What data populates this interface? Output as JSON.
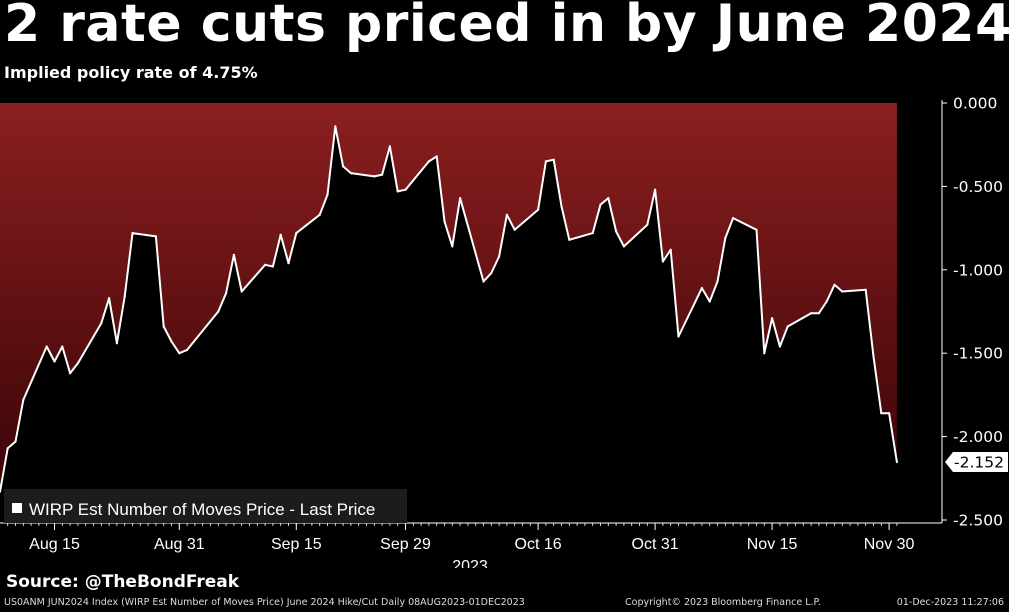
{
  "title": "2 rate cuts priced in by June 2024",
  "subtitle": "Implied policy rate of 4.75%",
  "source": "Source: @TheBondFreak",
  "footer": {
    "description": "US0ANM JUN2024 Index (WIRP Est Number of Moves Price) June 2024 Hike/Cut  Daily 08AUG2023-01DEC2023",
    "copyright": "Copyright© 2023 Bloomberg Finance L.P.",
    "timestamp": "01-Dec-2023 11:27:06"
  },
  "colors": {
    "background": "#000000",
    "area_top": "#8c1f20",
    "area_bottom": "#3a0406",
    "line": "#ffffff"
  },
  "chart_data": {
    "type": "line",
    "legend": "WIRP Est Number of Moves Price - Last Price",
    "legend_position": "bottom-left",
    "x_year_label": "2023",
    "x_ticks": [
      "Aug 15",
      "Aug 31",
      "Sep 15",
      "Sep 29",
      "Oct 16",
      "Oct 31",
      "Nov 15",
      "Nov 30"
    ],
    "x_tick_dates": [
      "2023-08-15",
      "2023-08-31",
      "2023-09-15",
      "2023-09-29",
      "2023-10-16",
      "2023-10-31",
      "2023-11-15",
      "2023-11-30"
    ],
    "y_ticks": [
      "0.000",
      "-0.500",
      "-1.000",
      "-1.500",
      "-2.000",
      "-2.500"
    ],
    "ylim": [
      -2.5,
      0
    ],
    "last_value_label": "-2.152",
    "grid": false,
    "series": [
      {
        "name": "WIRP Est Number of Moves Price - Last Price",
        "points": [
          [
            "2023-08-08",
            -2.33
          ],
          [
            "2023-08-09",
            -2.07
          ],
          [
            "2023-08-10",
            -2.03
          ],
          [
            "2023-08-11",
            -1.78
          ],
          [
            "2023-08-14",
            -1.46
          ],
          [
            "2023-08-15",
            -1.55
          ],
          [
            "2023-08-16",
            -1.46
          ],
          [
            "2023-08-17",
            -1.62
          ],
          [
            "2023-08-18",
            -1.56
          ],
          [
            "2023-08-21",
            -1.32
          ],
          [
            "2023-08-22",
            -1.17
          ],
          [
            "2023-08-23",
            -1.44
          ],
          [
            "2023-08-24",
            -1.16
          ],
          [
            "2023-08-25",
            -0.78
          ],
          [
            "2023-08-28",
            -0.8
          ],
          [
            "2023-08-29",
            -1.34
          ],
          [
            "2023-08-30",
            -1.43
          ],
          [
            "2023-08-31",
            -1.5
          ],
          [
            "2023-09-01",
            -1.48
          ],
          [
            "2023-09-05",
            -1.25
          ],
          [
            "2023-09-06",
            -1.14
          ],
          [
            "2023-09-07",
            -0.91
          ],
          [
            "2023-09-08",
            -1.13
          ],
          [
            "2023-09-11",
            -0.97
          ],
          [
            "2023-09-12",
            -0.98
          ],
          [
            "2023-09-13",
            -0.79
          ],
          [
            "2023-09-14",
            -0.96
          ],
          [
            "2023-09-15",
            -0.78
          ],
          [
            "2023-09-18",
            -0.67
          ],
          [
            "2023-09-19",
            -0.55
          ],
          [
            "2023-09-20",
            -0.14
          ],
          [
            "2023-09-21",
            -0.38
          ],
          [
            "2023-09-22",
            -0.42
          ],
          [
            "2023-09-25",
            -0.44
          ],
          [
            "2023-09-26",
            -0.43
          ],
          [
            "2023-09-27",
            -0.26
          ],
          [
            "2023-09-28",
            -0.53
          ],
          [
            "2023-09-29",
            -0.52
          ],
          [
            "2023-10-02",
            -0.35
          ],
          [
            "2023-10-03",
            -0.32
          ],
          [
            "2023-10-04",
            -0.71
          ],
          [
            "2023-10-05",
            -0.86
          ],
          [
            "2023-10-06",
            -0.57
          ],
          [
            "2023-10-09",
            -1.07
          ],
          [
            "2023-10-10",
            -1.02
          ],
          [
            "2023-10-11",
            -0.92
          ],
          [
            "2023-10-12",
            -0.67
          ],
          [
            "2023-10-13",
            -0.76
          ],
          [
            "2023-10-16",
            -0.64
          ],
          [
            "2023-10-17",
            -0.35
          ],
          [
            "2023-10-18",
            -0.34
          ],
          [
            "2023-10-19",
            -0.62
          ],
          [
            "2023-10-20",
            -0.82
          ],
          [
            "2023-10-23",
            -0.78
          ],
          [
            "2023-10-24",
            -0.61
          ],
          [
            "2023-10-25",
            -0.57
          ],
          [
            "2023-10-26",
            -0.77
          ],
          [
            "2023-10-27",
            -0.86
          ],
          [
            "2023-10-30",
            -0.73
          ],
          [
            "2023-10-31",
            -0.52
          ],
          [
            "2023-11-01",
            -0.95
          ],
          [
            "2023-11-02",
            -0.88
          ],
          [
            "2023-11-03",
            -1.4
          ],
          [
            "2023-11-06",
            -1.11
          ],
          [
            "2023-11-07",
            -1.19
          ],
          [
            "2023-11-08",
            -1.07
          ],
          [
            "2023-11-09",
            -0.81
          ],
          [
            "2023-11-10",
            -0.69
          ],
          [
            "2023-11-13",
            -0.76
          ],
          [
            "2023-11-14",
            -1.5
          ],
          [
            "2023-11-15",
            -1.29
          ],
          [
            "2023-11-16",
            -1.46
          ],
          [
            "2023-11-17",
            -1.34
          ],
          [
            "2023-11-20",
            -1.26
          ],
          [
            "2023-11-21",
            -1.26
          ],
          [
            "2023-11-22",
            -1.19
          ],
          [
            "2023-11-23",
            -1.09
          ],
          [
            "2023-11-24",
            -1.13
          ],
          [
            "2023-11-27",
            -1.12
          ],
          [
            "2023-11-28",
            -1.52
          ],
          [
            "2023-11-29",
            -1.86
          ],
          [
            "2023-11-30",
            -1.86
          ],
          [
            "2023-12-01",
            -2.152
          ]
        ]
      }
    ]
  }
}
